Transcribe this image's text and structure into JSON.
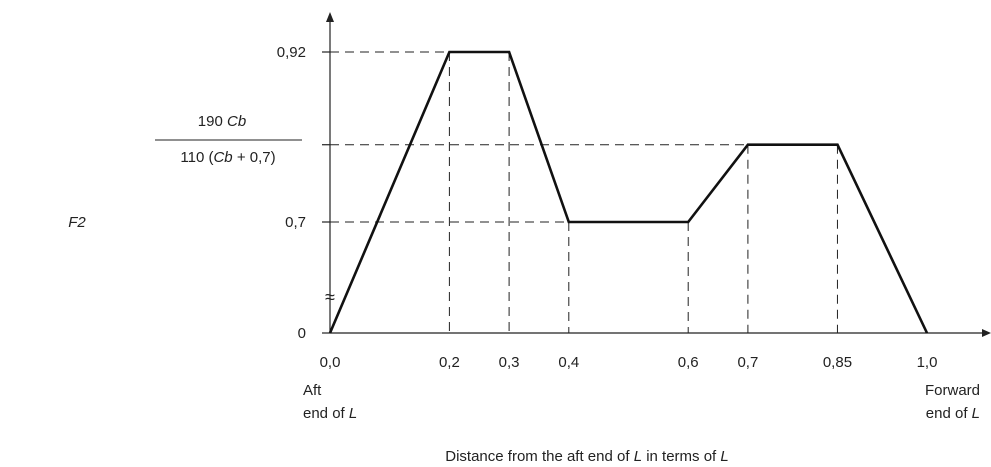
{
  "chart_data": {
    "type": "line",
    "y_axis_symbol": "F2",
    "xlabel": "Distance from the aft end of L in terms of L",
    "xlim": [
      0,
      1.1
    ],
    "ylim": [
      0,
      1.0
    ],
    "y_axis_break_symbol": "≈",
    "series": [
      {
        "x": [
          0.0,
          0.2,
          0.3,
          0.4,
          0.6,
          0.7,
          0.85,
          1.0
        ],
        "y": [
          0.0,
          0.92,
          0.92,
          0.7,
          0.7,
          0.8,
          0.8,
          0.0
        ]
      }
    ],
    "x_ticks": [
      {
        "value": 0.0,
        "label": "0,0"
      },
      {
        "value": 0.2,
        "label": "0,2"
      },
      {
        "value": 0.3,
        "label": "0,3"
      },
      {
        "value": 0.4,
        "label": "0,4"
      },
      {
        "value": 0.6,
        "label": "0,6"
      },
      {
        "value": 0.7,
        "label": "0,7"
      },
      {
        "value": 0.85,
        "label": "0,85"
      },
      {
        "value": 1.0,
        "label": "1,0"
      }
    ],
    "y_ticks": [
      {
        "value": 0.0,
        "label": "0"
      },
      {
        "value": 0.7,
        "label": "0,7"
      },
      {
        "value": 0.92,
        "label": "0,92"
      }
    ],
    "y_fraction_tick": {
      "value": 0.8,
      "numerator": "190 Cb",
      "denominator": "110 (Cb + 0,7)"
    },
    "x_end_notes": {
      "aft_line1": "Aft",
      "aft_line2": "end of L",
      "forward_line1": "Forward",
      "forward_line2": "end of L"
    }
  }
}
